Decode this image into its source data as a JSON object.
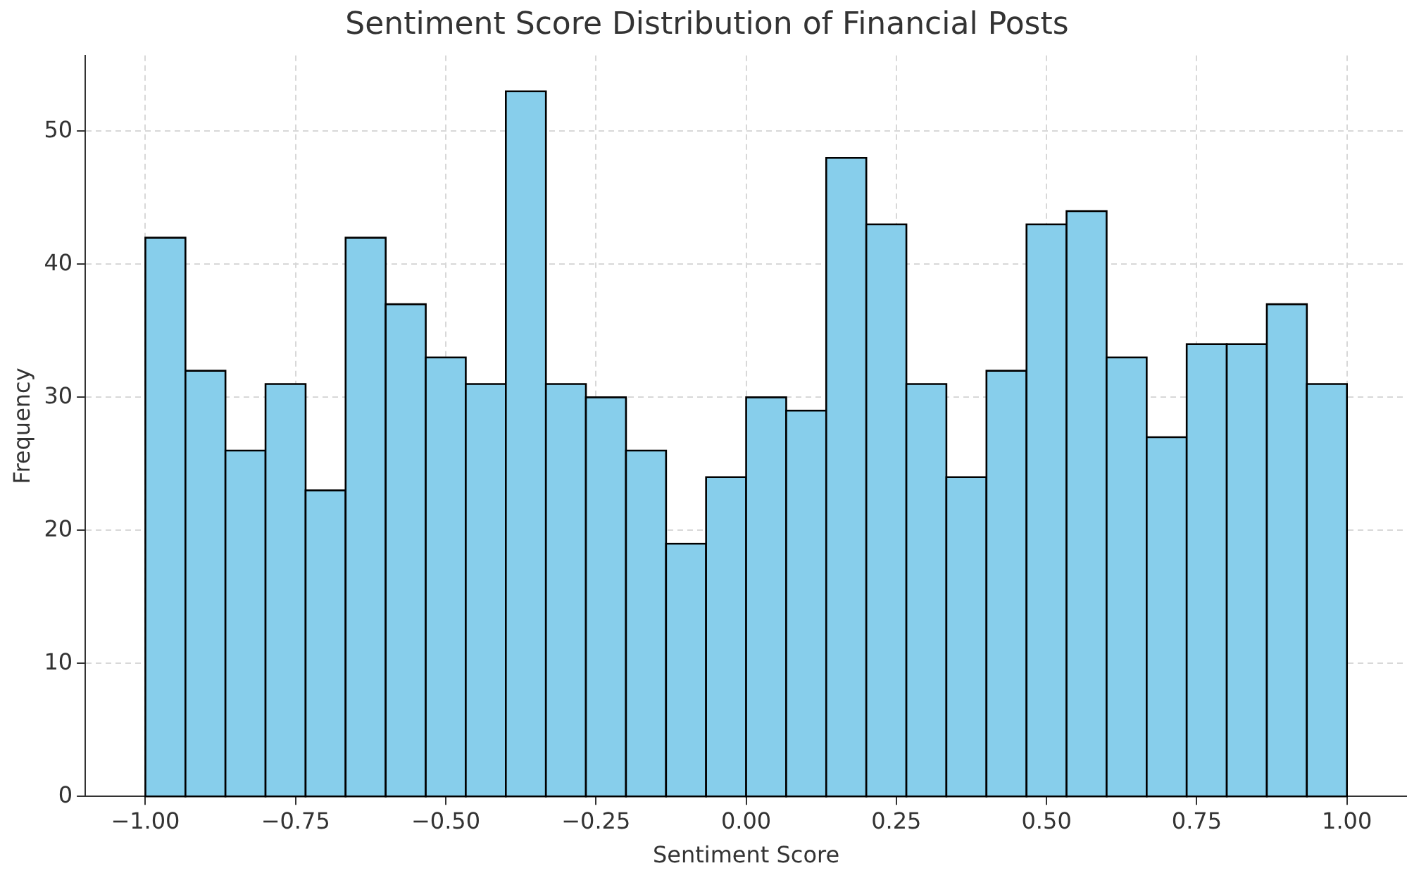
{
  "chart_data": {
    "type": "histogram",
    "title": "Sentiment Score Distribution of Financial Posts",
    "xlabel": "Sentiment Score",
    "ylabel": "Frequency",
    "bins": [
      -1,
      -0.9333,
      -0.8667,
      -0.8,
      -0.7333,
      -0.6667,
      -0.6,
      -0.5333,
      -0.4667,
      -0.4,
      -0.3333,
      -0.2667,
      -0.2,
      -0.1333,
      -0.0667,
      0,
      0.0667,
      0.1333,
      0.2,
      0.2667,
      0.3333,
      0.4,
      0.4667,
      0.5333,
      0.6,
      0.6667,
      0.7333,
      0.8,
      0.8667,
      0.9333,
      1
    ],
    "values": [
      42,
      32,
      26,
      31,
      23,
      42,
      37,
      33,
      31,
      53,
      31,
      30,
      26,
      19,
      24,
      30,
      29,
      48,
      43,
      31,
      24,
      32,
      43,
      44,
      33,
      27,
      34,
      34,
      37,
      31
    ],
    "color": "#87ceeb",
    "xlim": [
      -1.1,
      1.1
    ],
    "xticks": [
      {
        "value": -1,
        "label": "−1.00"
      },
      {
        "value": -0.75,
        "label": "−0.75"
      },
      {
        "value": -0.5,
        "label": "−0.50"
      },
      {
        "value": -0.25,
        "label": "−0.25"
      },
      {
        "value": 0,
        "label": "0.00"
      },
      {
        "value": 0.25,
        "label": "0.25"
      },
      {
        "value": 0.5,
        "label": "0.50"
      },
      {
        "value": 0.75,
        "label": "0.75"
      },
      {
        "value": 1,
        "label": "1.00"
      }
    ],
    "ylim": [
      0,
      55.7
    ],
    "yticks": [
      0,
      10,
      20,
      30,
      40,
      50
    ],
    "grid": true
  }
}
